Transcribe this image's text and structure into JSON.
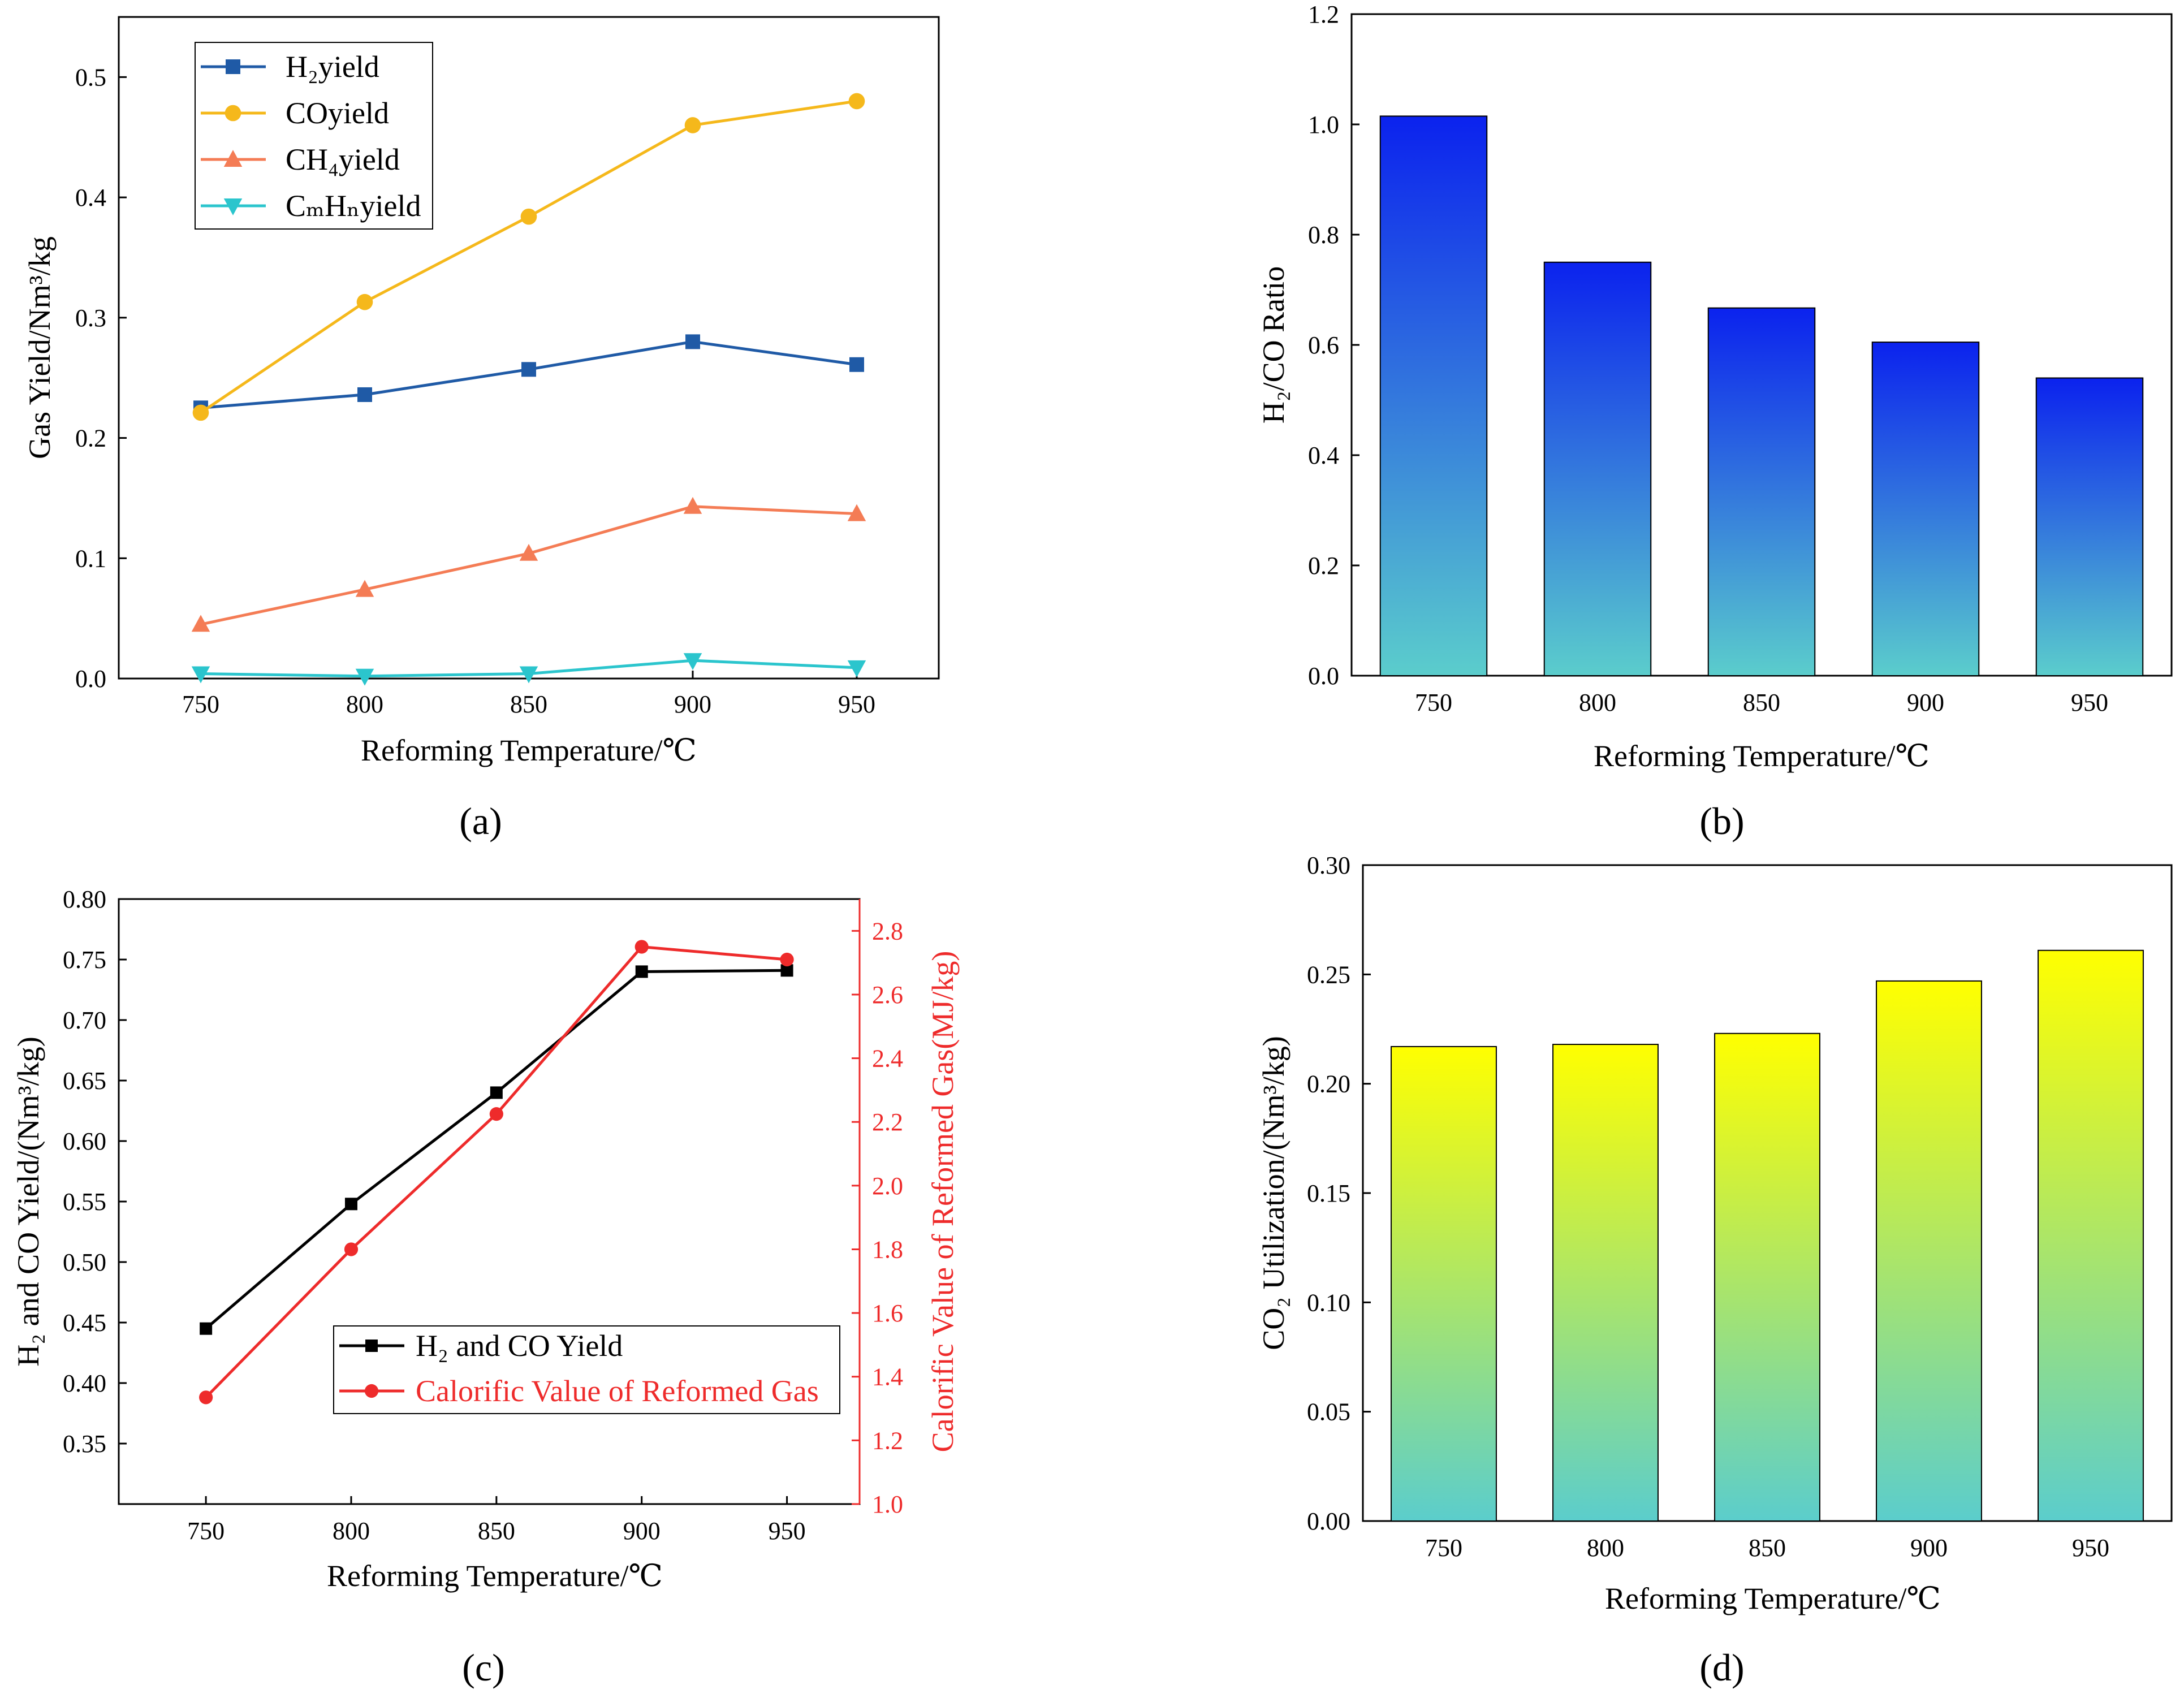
{
  "chart_data": [
    {
      "id": "a",
      "type": "line",
      "panel_label": "(a)",
      "x": [
        750,
        800,
        850,
        900,
        950
      ],
      "xlabel": "Reforming Temperature/℃",
      "ylabel": "Gas Yield/Nm³/kg",
      "ylim": [
        0,
        0.55
      ],
      "yticks": [
        0,
        0.1,
        0.2,
        0.3,
        0.4,
        0.5
      ],
      "ytick_labels": [
        "0.0",
        "0.1",
        "0.2",
        "0.3",
        "0.4",
        "0.5"
      ],
      "legend_position": "top-left",
      "series": [
        {
          "name": "H₂yield",
          "color": "#1f5aa6",
          "marker": "square",
          "values": [
            0.225,
            0.236,
            0.257,
            0.28,
            0.261
          ]
        },
        {
          "name": "COyield",
          "color": "#f5b81b",
          "marker": "circle",
          "values": [
            0.221,
            0.313,
            0.384,
            0.46,
            0.48
          ]
        },
        {
          "name": "CH₄yield",
          "color": "#f47c55",
          "marker": "triangle-up",
          "values": [
            0.045,
            0.074,
            0.104,
            0.143,
            0.137
          ]
        },
        {
          "name": "CₘHₙyield",
          "color": "#2bc5cd",
          "marker": "triangle-down",
          "values": [
            0.004,
            0.002,
            0.004,
            0.015,
            0.009
          ]
        }
      ]
    },
    {
      "id": "b",
      "type": "bar",
      "panel_label": "(b)",
      "categories": [
        "750",
        "800",
        "850",
        "900",
        "950"
      ],
      "values": [
        1.015,
        0.75,
        0.667,
        0.605,
        0.54
      ],
      "xlabel": "Reforming Temperature/℃",
      "ylabel": "H₂/CO Ratio",
      "ylim": [
        0,
        1.2
      ],
      "yticks": [
        0,
        0.2,
        0.4,
        0.6,
        0.8,
        1.0,
        1.2
      ],
      "ytick_labels": [
        "0.0",
        "0.2",
        "0.4",
        "0.6",
        "0.8",
        "1.0",
        "1.2"
      ],
      "gradient_top": "#0b22ee",
      "gradient_bottom": "#5bcdcc"
    },
    {
      "id": "c",
      "type": "line",
      "panel_label": "(c)",
      "x": [
        750,
        800,
        850,
        900,
        950
      ],
      "xlabel": "Reforming Temperature/℃",
      "ylabel": "H₂ and CO Yield/(Nm³/kg)",
      "y2label": "Calorific Value of Reformed Gas(MJ/kg)",
      "ylim": [
        0.3,
        0.8
      ],
      "yticks": [
        0.35,
        0.4,
        0.45,
        0.5,
        0.55,
        0.6,
        0.65,
        0.7,
        0.75,
        0.8
      ],
      "ytick_labels": [
        "0.35",
        "0.40",
        "0.45",
        "0.50",
        "0.55",
        "0.60",
        "0.65",
        "0.70",
        "0.75",
        "0.80"
      ],
      "y2lim": [
        1.0,
        2.9
      ],
      "y2ticks": [
        1.0,
        1.2,
        1.4,
        1.6,
        1.8,
        2.0,
        2.2,
        2.4,
        2.6,
        2.8
      ],
      "y2tick_labels": [
        "1.0",
        "1.2",
        "1.4",
        "1.6",
        "1.8",
        "2.0",
        "2.2",
        "2.4",
        "2.6",
        "2.8"
      ],
      "legend_position": "center-right",
      "series": [
        {
          "name": "H₂ and CO Yield",
          "color": "#000000",
          "marker": "square",
          "axis": "left",
          "values": [
            0.445,
            0.548,
            0.64,
            0.74,
            0.741
          ]
        },
        {
          "name": "Calorific Value of Reformed Gas",
          "color": "#ee2b2b",
          "marker": "circle",
          "axis": "right",
          "values": [
            1.335,
            1.8,
            2.225,
            2.75,
            2.71
          ]
        }
      ]
    },
    {
      "id": "d",
      "type": "bar",
      "panel_label": "(d)",
      "categories": [
        "750",
        "800",
        "850",
        "900",
        "950"
      ],
      "values": [
        0.217,
        0.218,
        0.223,
        0.247,
        0.261
      ],
      "xlabel": "Reforming Temperature/℃",
      "ylabel": "CO₂ Utilization/(Nm³/kg)",
      "ylim": [
        0,
        0.3
      ],
      "yticks": [
        0,
        0.05,
        0.1,
        0.15,
        0.2,
        0.25,
        0.3
      ],
      "ytick_labels": [
        "0.00",
        "0.05",
        "0.10",
        "0.15",
        "0.20",
        "0.25",
        "0.30"
      ],
      "gradient_top": "#ffff00",
      "gradient_bottom": "#5bcdcc"
    }
  ]
}
